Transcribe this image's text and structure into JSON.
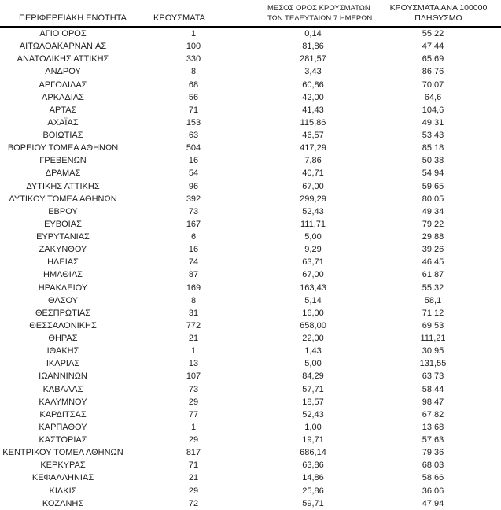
{
  "chart_data": {
    "type": "table",
    "title": "",
    "locale_note": "",
    "columns": [
      {
        "id": "region",
        "lines": [
          "ΠΕΡΙΦΕΡΕΙΑΚΗ ΕΝΟΤΗΤΑ"
        ]
      },
      {
        "id": "cases",
        "lines": [
          "ΚΡΟΥΣΜΑΤΑ"
        ]
      },
      {
        "id": "avg7",
        "lines": [
          "ΜΕΣΟΣ ΟΡΟΣ ΚΡΟΥΣΜΑΤΩΝ",
          "ΤΩΝ ΤΕΛΕΥΤΑΙΩΝ 7 ΗΜΕΡΩΝ"
        ]
      },
      {
        "id": "per100k",
        "lines": [
          "ΚΡΟΥΣΜΑΤΑ ΑΝΑ 100000",
          "ΠΛΗΘΥΣΜΟ"
        ]
      }
    ],
    "rows": [
      [
        "ΑΓΙΟ ΟΡΟΣ",
        "1",
        "0,14",
        "55,22"
      ],
      [
        "ΑΙΤΩΛΟΑΚΑΡΝΑΝΙΑΣ",
        "100",
        "81,86",
        "47,44"
      ],
      [
        "ΑΝΑΤΟΛΙΚΗΣ ΑΤΤΙΚΗΣ",
        "330",
        "281,57",
        "65,69"
      ],
      [
        "ΑΝΔΡΟΥ",
        "8",
        "3,43",
        "86,76"
      ],
      [
        "ΑΡΓΟΛΙΔΑΣ",
        "68",
        "60,86",
        "70,07"
      ],
      [
        "ΑΡΚΑΔΙΑΣ",
        "56",
        "42,00",
        "64,6"
      ],
      [
        "ΑΡΤΑΣ",
        "71",
        "41,43",
        "104,6"
      ],
      [
        "ΑΧΑΪΑΣ",
        "153",
        "115,86",
        "49,31"
      ],
      [
        "ΒΟΙΩΤΙΑΣ",
        "63",
        "46,57",
        "53,43"
      ],
      [
        "ΒΟΡΕΙΟΥ ΤΟΜΕΑ ΑΘΗΝΩΝ",
        "504",
        "417,29",
        "85,18"
      ],
      [
        "ΓΡΕΒΕΝΩΝ",
        "16",
        "7,86",
        "50,38"
      ],
      [
        "ΔΡΑΜΑΣ",
        "54",
        "40,71",
        "54,94"
      ],
      [
        "ΔΥΤΙΚΗΣ ΑΤΤΙΚΗΣ",
        "96",
        "67,00",
        "59,65"
      ],
      [
        "ΔΥΤΙΚΟΥ ΤΟΜΕΑ ΑΘΗΝΩΝ",
        "392",
        "299,29",
        "80,05"
      ],
      [
        "ΕΒΡΟΥ",
        "73",
        "52,43",
        "49,34"
      ],
      [
        "ΕΥΒΟΙΑΣ",
        "167",
        "111,71",
        "79,22"
      ],
      [
        "ΕΥΡΥΤΑΝΙΑΣ",
        "6",
        "5,00",
        "29,88"
      ],
      [
        "ΖΑΚΥΝΘΟΥ",
        "16",
        "9,29",
        "39,26"
      ],
      [
        "ΗΛΕΙΑΣ",
        "74",
        "63,71",
        "46,45"
      ],
      [
        "ΗΜΑΘΙΑΣ",
        "87",
        "67,00",
        "61,87"
      ],
      [
        "ΗΡΑΚΛΕΙΟΥ",
        "169",
        "163,43",
        "55,32"
      ],
      [
        "ΘΑΣΟΥ",
        "8",
        "5,14",
        "58,1"
      ],
      [
        "ΘΕΣΠΡΩΤΙΑΣ",
        "31",
        "16,00",
        "71,12"
      ],
      [
        "ΘΕΣΣΑΛΟΝΙΚΗΣ",
        "772",
        "658,00",
        "69,53"
      ],
      [
        "ΘΗΡΑΣ",
        "21",
        "22,00",
        "111,21"
      ],
      [
        "ΙΘΑΚΗΣ",
        "1",
        "1,43",
        "30,95"
      ],
      [
        "ΙΚΑΡΙΑΣ",
        "13",
        "5,00",
        "131,55"
      ],
      [
        "ΙΩΑΝΝΙΝΩΝ",
        "107",
        "84,29",
        "63,73"
      ],
      [
        "ΚΑΒΑΛΑΣ",
        "73",
        "57,71",
        "58,44"
      ],
      [
        "ΚΑΛΥΜΝΟΥ",
        "29",
        "18,57",
        "98,47"
      ],
      [
        "ΚΑΡΔΙΤΣΑΣ",
        "77",
        "52,43",
        "67,82"
      ],
      [
        "ΚΑΡΠΑΘΟΥ",
        "1",
        "1,00",
        "13,68"
      ],
      [
        "ΚΑΣΤΟΡΙΑΣ",
        "29",
        "19,71",
        "57,63"
      ],
      [
        "ΚΕΝΤΡΙΚΟΥ ΤΟΜΕΑ ΑΘΗΝΩΝ",
        "817",
        "686,14",
        "79,36"
      ],
      [
        "ΚΕΡΚΥΡΑΣ",
        "71",
        "63,86",
        "68,03"
      ],
      [
        "ΚΕΦΑΛΛΗΝΙΑΣ",
        "21",
        "14,86",
        "58,66"
      ],
      [
        "ΚΙΛΚΙΣ",
        "29",
        "25,86",
        "36,06"
      ],
      [
        "ΚΟΖΑΝΗΣ",
        "72",
        "59,71",
        "47,94"
      ]
    ]
  },
  "colors": {
    "text": "#1f1f1f",
    "rule": "#000000",
    "background": "#ffffff"
  }
}
